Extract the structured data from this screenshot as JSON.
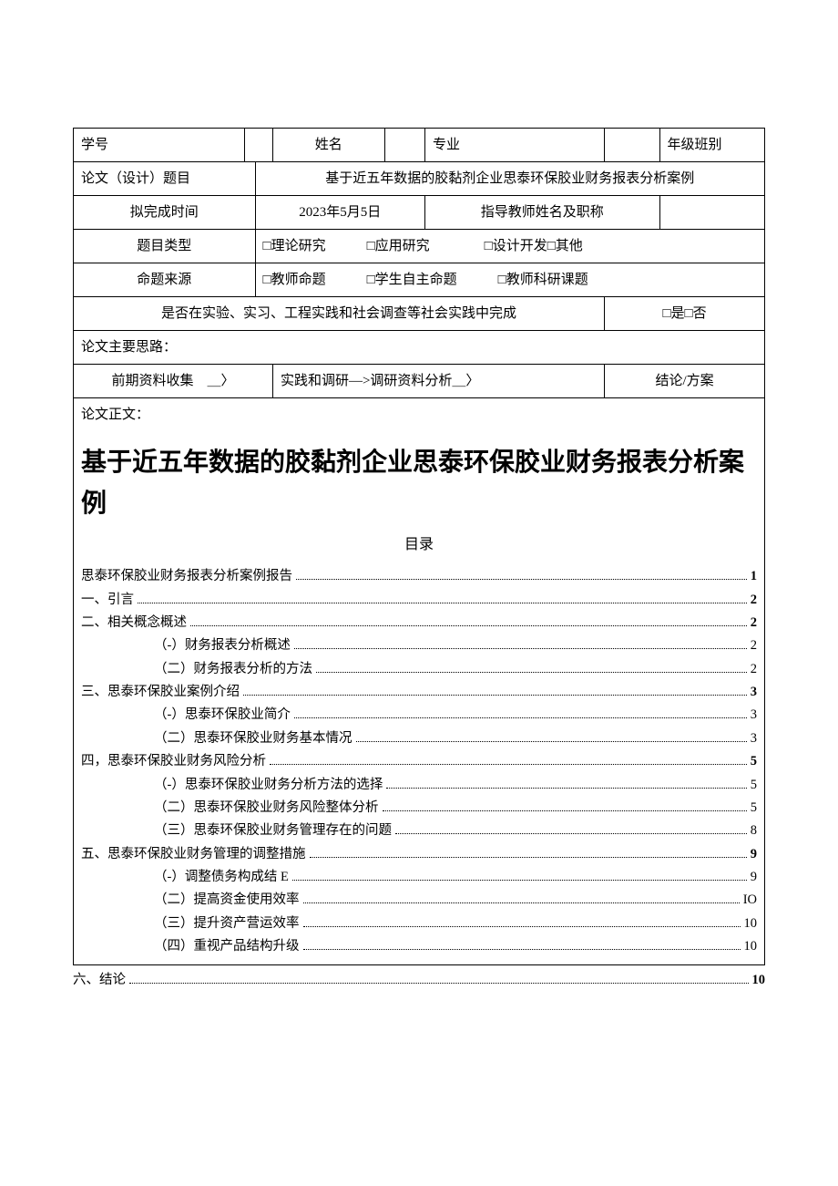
{
  "form": {
    "row1": {
      "c1": "学号",
      "c2": "",
      "c3": "姓名",
      "c4": "",
      "c5": "专业",
      "c6": "",
      "c7": "年级班别",
      "c8": ""
    },
    "row2": {
      "label": "论文（设计）题目",
      "value": "基于近五年数据的胶黏剂企业思泰环保胶业财务报表分析案例"
    },
    "row3": {
      "c1": "拟完成时间",
      "c2": "2023年5月5日",
      "c3": "指导教师姓名及职称",
      "c4": ""
    },
    "row4": {
      "label": "题目类型",
      "value": "□理论研究　　　□应用研究　　　　□设计开发□其他"
    },
    "row5": {
      "label": "命题来源",
      "value": "□教师命题　　　□学生自主命题　　　□教师科研课题"
    },
    "row6": {
      "label": "是否在实验、实习、工程实践和社会调查等社会实践中完成",
      "value": "□是□否"
    },
    "row7": "论文主要思路：",
    "row8": {
      "c1": "前期资料收集　＿〉",
      "c2": "实践和调研—>调研资料分析＿〉",
      "c3": "结论/方案"
    },
    "bodyLabel": "论文正文："
  },
  "thesisTitle": "基于近五年数据的胶黏剂企业思泰环保胶业财务报表分析案例",
  "tocHeading": "目录",
  "toc": [
    {
      "level": 1,
      "label": "思泰环保胶业财务报表分析案例报告",
      "page": "1"
    },
    {
      "level": 1,
      "label": "一、引言",
      "page": "2"
    },
    {
      "level": 1,
      "label": "二、相关概念概述",
      "page": "2"
    },
    {
      "level": 2,
      "label": "（-）财务报表分析概述",
      "page": "2"
    },
    {
      "level": 2,
      "label": "（二）财务报表分析的方法",
      "page": "2"
    },
    {
      "level": 1,
      "label": "三、思泰环保胶业案例介绍",
      "page": "3"
    },
    {
      "level": 2,
      "label": "（-）思泰环保胶业简介",
      "page": "3"
    },
    {
      "level": 2,
      "label": "（二）思泰环保胶业财务基本情况",
      "page": "3"
    },
    {
      "level": 1,
      "label": "四，思泰环保胶业财务风险分析",
      "page": "5"
    },
    {
      "level": 2,
      "label": "（-）思泰环保胶业财务分析方法的选择",
      "page": "5"
    },
    {
      "level": 2,
      "label": "（二）思泰环保胶业财务风险整体分析",
      "page": "5"
    },
    {
      "level": 2,
      "label": "（三）思泰环保胶业财务管理存在的问题",
      "page": "8"
    },
    {
      "level": 1,
      "label": "五、思泰环保胶业财务管理的调整措施",
      "page": "9"
    },
    {
      "level": 2,
      "label": "（-）调整债务构成结 E",
      "page": "9"
    },
    {
      "level": 2,
      "label": "（二）提高资金使用效率",
      "page": "IO"
    },
    {
      "level": 2,
      "label": "（三）提升资产营运效率",
      "page": "10"
    },
    {
      "level": 2,
      "label": "（四）重视产品结构升级",
      "page": "10"
    }
  ],
  "outsideToc": {
    "label": "六、结论",
    "page": "10"
  }
}
